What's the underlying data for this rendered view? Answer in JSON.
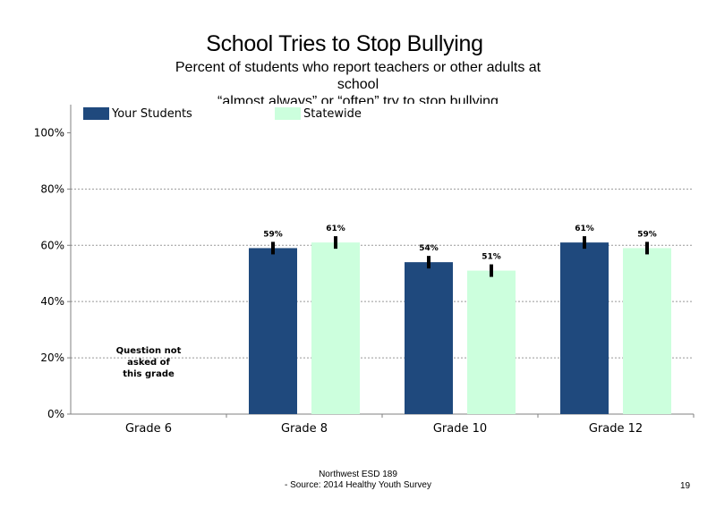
{
  "chart_data": {
    "type": "bar",
    "title": "School Tries to Stop Bullying",
    "subtitle_lines": [
      "Percent of students who report teachers or other adults at",
      "school",
      "“almost always” or “often” try to stop bullying"
    ],
    "categories": [
      "Grade 6",
      "Grade 8",
      "Grade 10",
      "Grade 12"
    ],
    "series": [
      {
        "name": "Your Students",
        "color": "#1f497d",
        "values": [
          null,
          59,
          54,
          61
        ],
        "labels": [
          "",
          "59%",
          "54%",
          "61%"
        ]
      },
      {
        "name": "Statewide",
        "color": "#ccffdd",
        "values": [
          null,
          61,
          51,
          59
        ],
        "labels": [
          "",
          "61%",
          "51%",
          "59%"
        ]
      }
    ],
    "error_bars": true,
    "ylim": [
      0,
      110
    ],
    "yticks": [
      0,
      20,
      40,
      60,
      80,
      100
    ],
    "ytick_labels": [
      "0%",
      "20%",
      "40%",
      "60%",
      "80%",
      "100%"
    ],
    "grid": "dotted horizontal",
    "legend_position": "top-left",
    "annotation": [
      "Question not",
      "asked of",
      "this grade"
    ]
  },
  "footer": {
    "line1": "Northwest ESD  189",
    "line2": "- Source: 2014 Healthy  Youth Survey",
    "page_number": "19"
  }
}
